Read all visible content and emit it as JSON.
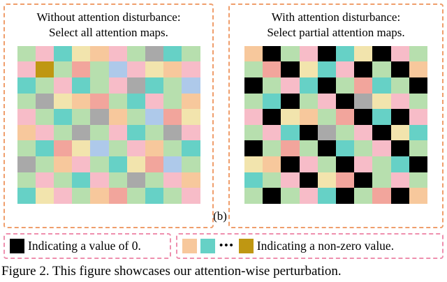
{
  "panels": {
    "left": {
      "title_line1": "Without attention disturbance:",
      "title_line2": "Select all attention maps."
    },
    "right": {
      "title_line1": "With attention disturbance:",
      "title_line2": "Select partial attention maps."
    }
  },
  "sublabel": "(b)",
  "legend": {
    "zero": {
      "swatch": "#000000",
      "text": "Indicating a value of 0."
    },
    "nonzero": {
      "swatches": [
        "#f7c89c",
        "#66d1c6",
        "#bf9712"
      ],
      "dots": "•••",
      "text": "Indicating a non-zero value."
    }
  },
  "caption": "Figure 2.  This figure showcases our attention-wise perturbation.",
  "colors": {
    "panel_border": "#ef9e6c",
    "legend_border": "#ee8fae",
    "background": "#ffffff"
  },
  "chart_data": {
    "type": "heatmap",
    "description": "Two 10x10 attention-map grids; left has all non-zero colored cells, right has some cells set to 0 (black).",
    "palette": {
      "G": "#b7dfae",
      "P": "#f7bcc8",
      "S": "#f2a59c",
      "T": "#66d1c6",
      "R": "#a9a9a9",
      "O": "#f7c89c",
      "B": "#aec9ea",
      "Y": "#f2e4ad",
      "M": "#bf9712",
      "K": "#000000"
    },
    "left_grid": [
      [
        "G",
        "P",
        "T",
        "Y",
        "O",
        "P",
        "G",
        "R",
        "T",
        "G"
      ],
      [
        "P",
        "M",
        "G",
        "S",
        "G",
        "B",
        "P",
        "Y",
        "O",
        "P"
      ],
      [
        "T",
        "G",
        "P",
        "T",
        "G",
        "P",
        "R",
        "T",
        "G",
        "B"
      ],
      [
        "G",
        "R",
        "Y",
        "O",
        "S",
        "G",
        "T",
        "P",
        "G",
        "O"
      ],
      [
        "P",
        "G",
        "T",
        "G",
        "R",
        "O",
        "G",
        "B",
        "S",
        "Y"
      ],
      [
        "O",
        "P",
        "G",
        "R",
        "G",
        "P",
        "T",
        "G",
        "R",
        "P"
      ],
      [
        "G",
        "T",
        "S",
        "Y",
        "B",
        "G",
        "P",
        "O",
        "G",
        "T"
      ],
      [
        "R",
        "G",
        "O",
        "P",
        "G",
        "T",
        "Y",
        "S",
        "B",
        "G"
      ],
      [
        "G",
        "P",
        "G",
        "T",
        "P",
        "G",
        "R",
        "G",
        "P",
        "O"
      ],
      [
        "T",
        "Y",
        "P",
        "G",
        "O",
        "S",
        "G",
        "T",
        "G",
        "P"
      ]
    ],
    "right_grid": [
      [
        "O",
        "K",
        "G",
        "P",
        "K",
        "T",
        "Y",
        "K",
        "P",
        "G"
      ],
      [
        "G",
        "S",
        "K",
        "Y",
        "T",
        "P",
        "K",
        "G",
        "K",
        "O"
      ],
      [
        "K",
        "G",
        "P",
        "T",
        "K",
        "G",
        "S",
        "T",
        "G",
        "K"
      ],
      [
        "G",
        "T",
        "K",
        "G",
        "P",
        "K",
        "R",
        "Y",
        "P",
        "G"
      ],
      [
        "P",
        "K",
        "Y",
        "O",
        "G",
        "S",
        "K",
        "T",
        "K",
        "P"
      ],
      [
        "G",
        "P",
        "T",
        "K",
        "R",
        "G",
        "P",
        "K",
        "Y",
        "T"
      ],
      [
        "K",
        "G",
        "S",
        "G",
        "K",
        "T",
        "G",
        "P",
        "K",
        "G"
      ],
      [
        "Y",
        "O",
        "K",
        "P",
        "G",
        "K",
        "P",
        "G",
        "T",
        "K"
      ],
      [
        "T",
        "G",
        "P",
        "K",
        "Y",
        "S",
        "K",
        "G",
        "P",
        "G"
      ],
      [
        "G",
        "K",
        "G",
        "P",
        "T",
        "K",
        "G",
        "S",
        "K",
        "O"
      ]
    ]
  }
}
